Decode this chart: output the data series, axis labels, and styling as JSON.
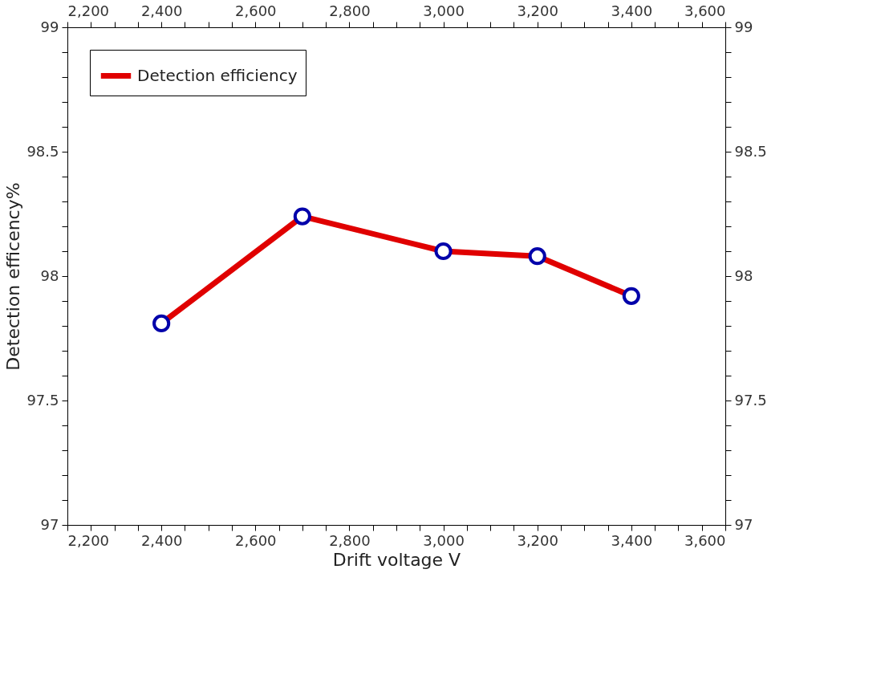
{
  "chart_data": {
    "type": "line",
    "xlabel": "Drift voltage V",
    "ylabel": "Detection efficency%",
    "x": [
      2400,
      2700,
      3000,
      3200,
      3400
    ],
    "series": [
      {
        "name": "Detection efficiency",
        "color": "#e00000",
        "values": [
          97.81,
          98.24,
          98.1,
          98.08,
          97.92
        ]
      }
    ],
    "marker": "circle",
    "line_style": "solid",
    "legend": "top left",
    "grid": false,
    "xlim": [
      2200,
      3600
    ],
    "xticks": [
      {
        "value": 2200,
        "label": "2,200"
      },
      {
        "value": 2250,
        "label": null
      },
      {
        "value": 2300,
        "label": null
      },
      {
        "value": 2350,
        "label": null
      },
      {
        "value": 2400,
        "label": "2,400"
      },
      {
        "value": 2450,
        "label": null
      },
      {
        "value": 2500,
        "label": null
      },
      {
        "value": 2550,
        "label": null
      },
      {
        "value": 2600,
        "label": "2,600"
      },
      {
        "value": 2650,
        "label": null
      },
      {
        "value": 2700,
        "label": null
      },
      {
        "value": 2750,
        "label": null
      },
      {
        "value": 2800,
        "label": "2,800"
      },
      {
        "value": 2850,
        "label": null
      },
      {
        "value": 2900,
        "label": null
      },
      {
        "value": 2950,
        "label": null
      },
      {
        "value": 3000,
        "label": "3,000"
      },
      {
        "value": 3050,
        "label": null
      },
      {
        "value": 3100,
        "label": null
      },
      {
        "value": 3150,
        "label": null
      },
      {
        "value": 3200,
        "label": "3,200"
      },
      {
        "value": 3250,
        "label": null
      },
      {
        "value": 3300,
        "label": null
      },
      {
        "value": 3350,
        "label": null
      },
      {
        "value": 3400,
        "label": "3,400"
      },
      {
        "value": 3450,
        "label": null
      },
      {
        "value": 3500,
        "label": null
      },
      {
        "value": 3550,
        "label": null
      },
      {
        "value": 3600,
        "label": "3,600"
      }
    ],
    "x2lim": [
      2200,
      3600
    ],
    "x2ticks": [
      {
        "value": 2200,
        "label": "2,200"
      },
      {
        "value": 2250,
        "label": null
      },
      {
        "value": 2300,
        "label": null
      },
      {
        "value": 2350,
        "label": null
      },
      {
        "value": 2400,
        "label": "2,400"
      },
      {
        "value": 2450,
        "label": null
      },
      {
        "value": 2500,
        "label": null
      },
      {
        "value": 2550,
        "label": null
      },
      {
        "value": 2600,
        "label": "2,600"
      },
      {
        "value": 2650,
        "label": null
      },
      {
        "value": 2700,
        "label": null
      },
      {
        "value": 2750,
        "label": null
      },
      {
        "value": 2800,
        "label": "2,800"
      },
      {
        "value": 2850,
        "label": null
      },
      {
        "value": 2900,
        "label": null
      },
      {
        "value": 2950,
        "label": null
      },
      {
        "value": 3000,
        "label": "3,000"
      },
      {
        "value": 3050,
        "label": null
      },
      {
        "value": 3100,
        "label": null
      },
      {
        "value": 3150,
        "label": null
      },
      {
        "value": 3200,
        "label": "3,200"
      },
      {
        "value": 3250,
        "label": null
      },
      {
        "value": 3300,
        "label": null
      },
      {
        "value": 3350,
        "label": null
      },
      {
        "value": 3400,
        "label": "3,400"
      },
      {
        "value": 3450,
        "label": null
      },
      {
        "value": 3500,
        "label": null
      },
      {
        "value": 3550,
        "label": null
      },
      {
        "value": 3600,
        "label": "3,600"
      }
    ],
    "ylim": [
      97,
      99
    ],
    "yticks": [
      97,
      {
        "value": 97.1,
        "label": null
      },
      {
        "value": 97.2,
        "label": null
      },
      {
        "value": 97.3,
        "label": null
      },
      {
        "value": 97.4,
        "label": null
      },
      97.5,
      {
        "value": 97.6,
        "label": null
      },
      {
        "value": 97.7,
        "label": null
      },
      {
        "value": 97.8,
        "label": null
      },
      {
        "value": 97.9,
        "label": null
      },
      98,
      {
        "value": 98.1,
        "label": null
      },
      {
        "value": 98.2,
        "label": null
      },
      {
        "value": 98.3,
        "label": null
      },
      {
        "value": 98.4,
        "label": null
      },
      98.5,
      {
        "value": 98.6,
        "label": null
      },
      {
        "value": 98.7,
        "label": null
      },
      {
        "value": 98.8,
        "label": null
      },
      {
        "value": 98.9,
        "label": null
      },
      99
    ],
    "y2lim": [
      97,
      99
    ],
    "y2ticks": [
      97,
      {
        "value": 97.1,
        "label": null
      },
      {
        "value": 97.2,
        "label": null
      },
      {
        "value": 97.3,
        "label": null
      },
      {
        "value": 97.4,
        "label": null
      },
      97.5,
      {
        "value": 97.6,
        "label": null
      },
      {
        "value": 97.7,
        "label": null
      },
      {
        "value": 97.8,
        "label": null
      },
      {
        "value": 97.9,
        "label": null
      },
      98,
      {
        "value": 98.1,
        "label": null
      },
      {
        "value": 98.2,
        "label": null
      },
      {
        "value": 98.3,
        "label": null
      },
      {
        "value": 98.4,
        "label": null
      },
      98.5,
      {
        "value": 98.6,
        "label": null
      },
      {
        "value": 98.7,
        "label": null
      },
      {
        "value": 98.8,
        "label": null
      },
      {
        "value": 98.9,
        "label": null
      },
      99
    ]
  }
}
